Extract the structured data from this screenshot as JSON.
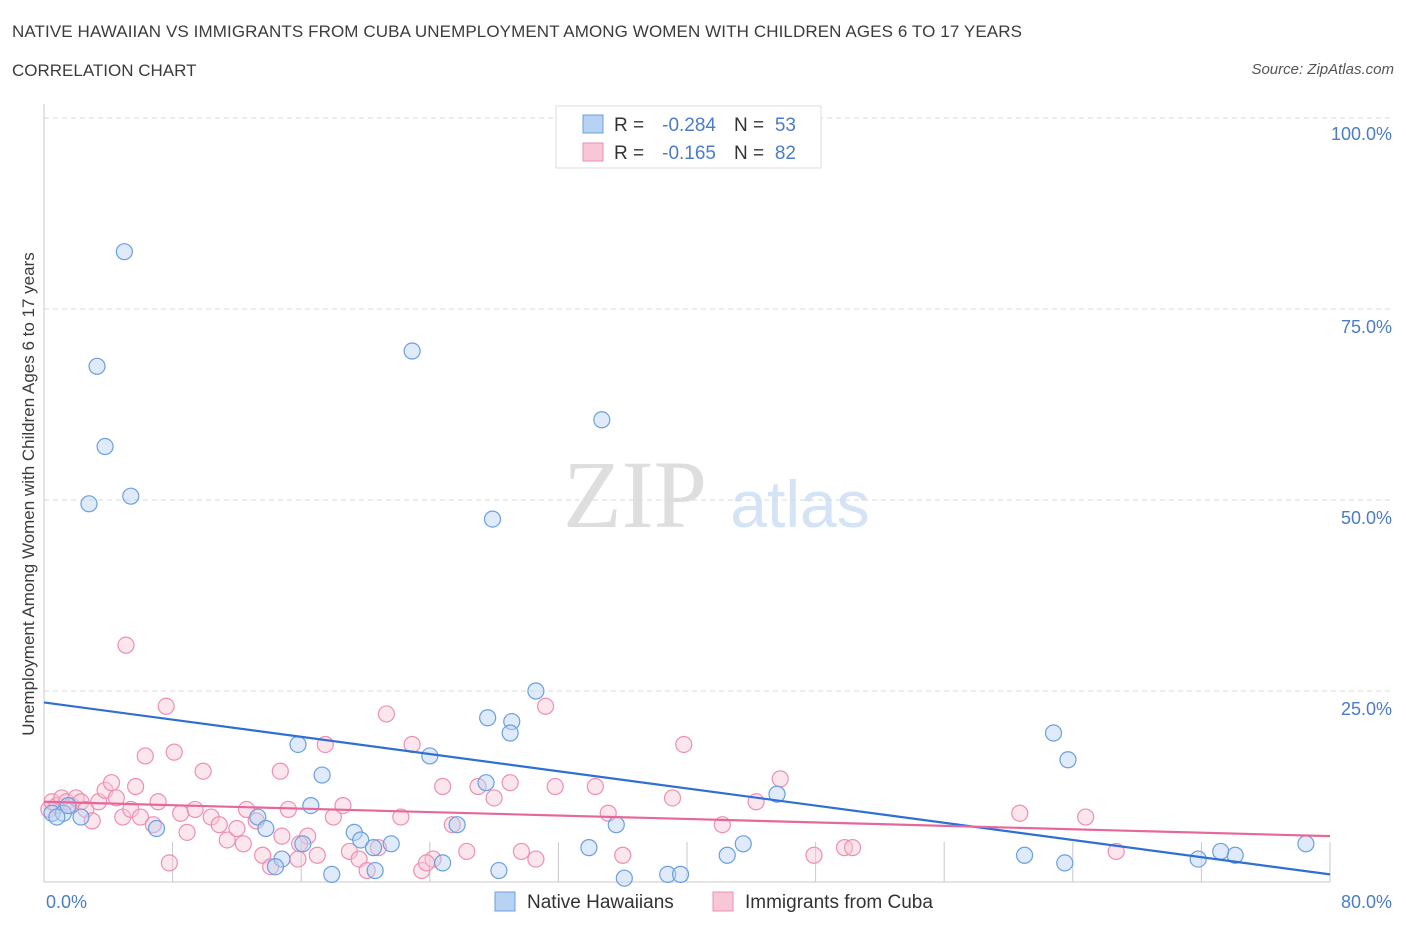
{
  "header": {
    "title": "NATIVE HAWAIIAN VS IMMIGRANTS FROM CUBA UNEMPLOYMENT AMONG WOMEN WITH CHILDREN AGES 6 TO 17 YEARS",
    "subtitle": "CORRELATION CHART",
    "source": "Source: ZipAtlas.com"
  },
  "colors": {
    "blue": "#6b9fe0",
    "blue_fill": "#b8d2f3",
    "blue_line": "#2f6fd4",
    "pink": "#ee8fb0",
    "pink_fill": "#f7c7d8",
    "pink_line": "#e6689a",
    "axis_label": "#4a7cc9",
    "grid": "#d8d8d8"
  },
  "chart_data": {
    "type": "scatter",
    "xlabel": "",
    "ylabel": "Unemployment Among Women with Children Ages 6 to 17 years",
    "xlim": [
      0,
      80
    ],
    "ylim": [
      0,
      100
    ],
    "x_ticks": [
      "0.0%",
      "80.0%"
    ],
    "y_ticks": [
      {
        "value": 100,
        "label": "100.0%"
      },
      {
        "value": 75,
        "label": "75.0%"
      },
      {
        "value": 50,
        "label": "50.0%"
      },
      {
        "value": 25,
        "label": "25.0%"
      }
    ],
    "watermark": {
      "zip": "ZIP",
      "atlas": "atlas"
    },
    "legend_stats": [
      {
        "r_label": "R =",
        "r_value": "-0.284",
        "n_label": "N =",
        "n_value": "53"
      },
      {
        "r_label": "R =",
        "r_value": "-0.165",
        "n_label": "N =",
        "n_value": "82"
      }
    ],
    "series": [
      {
        "name": "Native Hawaiians",
        "color": "#6b9fe0",
        "trend": {
          "x0": 0,
          "y0": 23.5,
          "x1": 80,
          "y1": 1.0
        },
        "points": [
          [
            5.0,
            82.5
          ],
          [
            3.3,
            67.5
          ],
          [
            3.8,
            57.0
          ],
          [
            5.4,
            50.5
          ],
          [
            2.8,
            49.5
          ],
          [
            22.9,
            69.5
          ],
          [
            34.7,
            60.5
          ],
          [
            27.9,
            47.5
          ],
          [
            30.6,
            25.0
          ],
          [
            27.6,
            21.5
          ],
          [
            29.1,
            21.0
          ],
          [
            29.0,
            19.5
          ],
          [
            15.8,
            18.0
          ],
          [
            17.3,
            14.0
          ],
          [
            24.0,
            16.5
          ],
          [
            27.5,
            13.0
          ],
          [
            45.6,
            11.5
          ],
          [
            62.8,
            19.5
          ],
          [
            63.7,
            16.0
          ],
          [
            0.5,
            9.0
          ],
          [
            1.2,
            9.0
          ],
          [
            1.5,
            10.0
          ],
          [
            0.8,
            8.5
          ],
          [
            2.3,
            8.5
          ],
          [
            7.0,
            7.0
          ],
          [
            13.3,
            8.5
          ],
          [
            13.8,
            7.0
          ],
          [
            16.6,
            10.0
          ],
          [
            19.3,
            6.5
          ],
          [
            19.7,
            5.5
          ],
          [
            20.5,
            4.5
          ],
          [
            16.1,
            5.0
          ],
          [
            14.8,
            3.0
          ],
          [
            14.4,
            2.0
          ],
          [
            17.9,
            1.0
          ],
          [
            20.6,
            1.5
          ],
          [
            21.6,
            5.0
          ],
          [
            24.8,
            2.5
          ],
          [
            25.7,
            7.5
          ],
          [
            28.3,
            1.5
          ],
          [
            33.9,
            4.5
          ],
          [
            35.6,
            7.5
          ],
          [
            36.1,
            0.5
          ],
          [
            38.8,
            1.0
          ],
          [
            39.6,
            1.0
          ],
          [
            42.5,
            3.5
          ],
          [
            43.5,
            5.0
          ],
          [
            61.0,
            3.5
          ],
          [
            63.5,
            2.5
          ],
          [
            74.1,
            3.5
          ],
          [
            78.5,
            5.0
          ],
          [
            73.2,
            4.0
          ],
          [
            71.8,
            3.0
          ]
        ]
      },
      {
        "name": "Immigrants from Cuba",
        "color": "#ee8fb0",
        "trend": {
          "x0": 0,
          "y0": 10.5,
          "x1": 80,
          "y1": 6.0
        },
        "points": [
          [
            0.3,
            9.5
          ],
          [
            0.5,
            10.5
          ],
          [
            0.8,
            10.0
          ],
          [
            1.1,
            11.0
          ],
          [
            1.4,
            10.5
          ],
          [
            1.7,
            10.0
          ],
          [
            2.0,
            11.0
          ],
          [
            2.3,
            10.5
          ],
          [
            2.6,
            9.5
          ],
          [
            3.0,
            8.0
          ],
          [
            3.4,
            10.5
          ],
          [
            3.8,
            12.0
          ],
          [
            4.2,
            13.0
          ],
          [
            4.5,
            11.0
          ],
          [
            4.9,
            8.5
          ],
          [
            5.4,
            9.5
          ],
          [
            5.7,
            12.5
          ],
          [
            6.0,
            8.5
          ],
          [
            6.3,
            16.5
          ],
          [
            6.8,
            7.5
          ],
          [
            7.1,
            10.5
          ],
          [
            7.6,
            23.0
          ],
          [
            8.1,
            17.0
          ],
          [
            8.5,
            9.0
          ],
          [
            8.9,
            6.5
          ],
          [
            9.4,
            9.5
          ],
          [
            9.9,
            14.5
          ],
          [
            10.4,
            8.5
          ],
          [
            10.9,
            7.5
          ],
          [
            11.4,
            5.5
          ],
          [
            12.0,
            7.0
          ],
          [
            12.6,
            9.5
          ],
          [
            13.2,
            8.0
          ],
          [
            13.6,
            3.5
          ],
          [
            14.1,
            2.0
          ],
          [
            14.7,
            14.5
          ],
          [
            15.2,
            9.5
          ],
          [
            15.8,
            3.0
          ],
          [
            16.4,
            6.0
          ],
          [
            17.0,
            3.5
          ],
          [
            17.5,
            18.0
          ],
          [
            18.0,
            8.5
          ],
          [
            18.6,
            10.0
          ],
          [
            19.0,
            4.0
          ],
          [
            19.6,
            3.0
          ],
          [
            20.1,
            1.5
          ],
          [
            20.8,
            4.5
          ],
          [
            21.3,
            22.0
          ],
          [
            22.2,
            8.5
          ],
          [
            22.9,
            18.0
          ],
          [
            23.5,
            1.5
          ],
          [
            24.2,
            3.0
          ],
          [
            24.8,
            12.5
          ],
          [
            25.4,
            7.5
          ],
          [
            26.3,
            4.0
          ],
          [
            27.0,
            12.5
          ],
          [
            28.0,
            11.0
          ],
          [
            29.0,
            13.0
          ],
          [
            29.7,
            4.0
          ],
          [
            30.6,
            3.0
          ],
          [
            31.2,
            23.0
          ],
          [
            31.8,
            12.5
          ],
          [
            34.3,
            12.5
          ],
          [
            35.1,
            9.0
          ],
          [
            36.0,
            3.5
          ],
          [
            39.1,
            11.0
          ],
          [
            39.8,
            18.0
          ],
          [
            42.2,
            7.5
          ],
          [
            44.3,
            10.5
          ],
          [
            45.8,
            13.5
          ],
          [
            47.9,
            3.5
          ],
          [
            49.8,
            4.5
          ],
          [
            50.3,
            4.5
          ],
          [
            60.7,
            9.0
          ],
          [
            64.8,
            8.5
          ],
          [
            66.7,
            4.0
          ],
          [
            5.1,
            31.0
          ],
          [
            7.8,
            2.5
          ],
          [
            12.4,
            5.0
          ],
          [
            23.8,
            2.5
          ],
          [
            15.9,
            5.0
          ],
          [
            14.8,
            6.0
          ]
        ]
      }
    ]
  },
  "legend": {
    "items": [
      {
        "label": "Native Hawaiians",
        "color": "#6b9fe0"
      },
      {
        "label": "Immigrants from Cuba",
        "color": "#ee8fb0"
      }
    ]
  }
}
